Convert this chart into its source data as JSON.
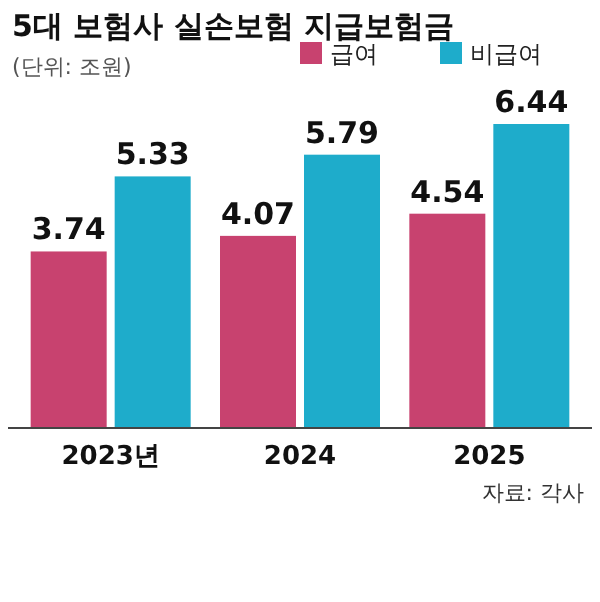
{
  "chart_data": {
    "type": "bar",
    "title": "5대 보험사 실손보험 지급보험금",
    "subtitle": "(단위: 조원)",
    "categories": [
      "2023년",
      "2024",
      "2025"
    ],
    "series": [
      {
        "name": "급여",
        "color": "#c8426f",
        "values": [
          3.74,
          4.07,
          4.54
        ]
      },
      {
        "name": "비급여",
        "color": "#1eaccb",
        "values": [
          5.33,
          5.79,
          6.44
        ]
      }
    ],
    "data_labels": true,
    "legend": "top right",
    "annotations": [
      "자료: 각사"
    ]
  }
}
